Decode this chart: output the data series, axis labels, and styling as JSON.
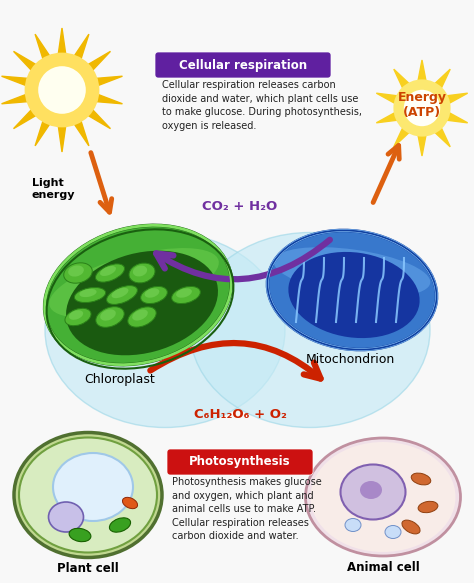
{
  "bg_color": "#f8f8f8",
  "cellular_resp_box_color": "#6020a0",
  "cellular_resp_title": "Cellular respiration",
  "cellular_resp_text": "Cellular respiration releases carbon\ndioxide and water, which plant cells use\nto make glucose. During photosynthesis,\noxygen is released.",
  "photosynthesis_box_color": "#cc1111",
  "photosynthesis_title": "Photosynthesis",
  "photosynthesis_text": "Photosynthesis makes glucose\nand oxygen, which plant and\nanimal cells use to make ATP.\nCellular respiration releases\ncarbon dioxide and water.",
  "co2_h2o_label": "CO₂ + H₂O",
  "glucose_o2_label": "C₆H₁₂O₆ + O₂",
  "energy_label": "Energy\n(ATP)",
  "light_energy_label": "Light\nenergy",
  "chloroplast_label": "Chloroplast",
  "mitochondrion_label": "Mitochondrion",
  "plant_cell_label": "Plant cell",
  "animal_cell_label": "Animal cell",
  "arrow_purple_color": "#7030a0",
  "arrow_red_color": "#cc2200",
  "arrow_orange_color": "#dd6010",
  "sun_yellow": "#f0b800",
  "sun_inner": "#ffe060",
  "sun_center": "#fffff0",
  "energy_yellow": "#f8d020",
  "energy_text_color": "#cc4400"
}
